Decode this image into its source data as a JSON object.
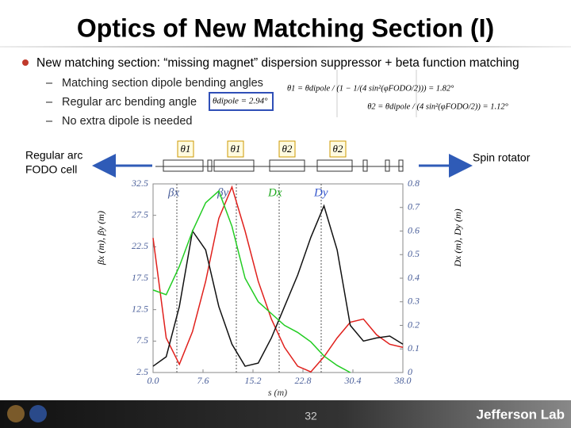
{
  "title": "Optics of New Matching Section (I)",
  "bullet": "New matching section: “missing magnet” dispersion suppressor + beta function matching",
  "sub_bullets": [
    "Matching section dipole bending angles",
    "Regular arc bending angle",
    "No extra dipole is needed"
  ],
  "equations": [
    "θ1 = θdipole / (1 − 1/(4 sin²(φFODO/2))) = 1.82°",
    "θ2 = θdipole / (4 sin²(φFODO/2)) = 1.12°"
  ],
  "dipole_angle": "θdipole = 2.94°",
  "left_label": [
    "Regular arc",
    "FODO cell"
  ],
  "right_label": "Spin rotator",
  "dipole_labels": [
    "θ1",
    "θ1",
    "θ2",
    "θ2"
  ],
  "page_number": "32",
  "logo": "Jefferson Lab",
  "chart_data": {
    "type": "line",
    "xlabel": "s (m)",
    "ylabel": "βx (m), βy (m)",
    "y2label": "Dx (m), Dy (m)",
    "curve_labels": [
      "βx",
      "βy",
      "Dx",
      "Dy"
    ],
    "x": [
      0,
      2,
      4,
      6,
      8,
      10,
      12,
      14,
      16,
      18,
      20,
      22,
      24,
      26,
      28,
      30,
      32,
      34,
      36,
      38
    ],
    "series": [
      {
        "name": "βx",
        "color": "#e0201c",
        "values": [
          23.9,
          8,
          3.8,
          9,
          17,
          27,
          32,
          25,
          17,
          11,
          6.5,
          3.5,
          2.6,
          5,
          8,
          10.5,
          11,
          8.5,
          7,
          6.5
        ]
      },
      {
        "name": "βy",
        "color": "#111111",
        "values": [
          3.5,
          5,
          13,
          25,
          22,
          13,
          7,
          3.5,
          4,
          8,
          13,
          18,
          24,
          29,
          22,
          10,
          7.5,
          8,
          8.3,
          7
        ]
      },
      {
        "name": "Dx",
        "color": "#22cc22",
        "axis": "y2",
        "values": [
          0.35,
          0.33,
          0.45,
          0.6,
          0.72,
          0.77,
          0.62,
          0.4,
          0.3,
          0.25,
          0.2,
          0.17,
          0.13,
          0.07,
          0.03,
          0,
          null,
          null,
          null,
          null
        ]
      }
    ],
    "xlim": [
      0,
      38
    ],
    "xticks": [
      {
        "value": 0,
        "label": "0.0"
      },
      7.6,
      15.2,
      22.8,
      30.4,
      {
        "value": 38,
        "label": "38.0"
      }
    ],
    "ylim": [
      2.5,
      32.5
    ],
    "yticks": [
      2.5,
      7.5,
      12.5,
      17.5,
      22.5,
      27.5,
      32.5
    ],
    "y2lim": [
      0,
      0.8
    ],
    "y2ticks": [
      0,
      0.1,
      0.2,
      0.3,
      0.4,
      0.5,
      0.6,
      0.7,
      0.8
    ]
  }
}
